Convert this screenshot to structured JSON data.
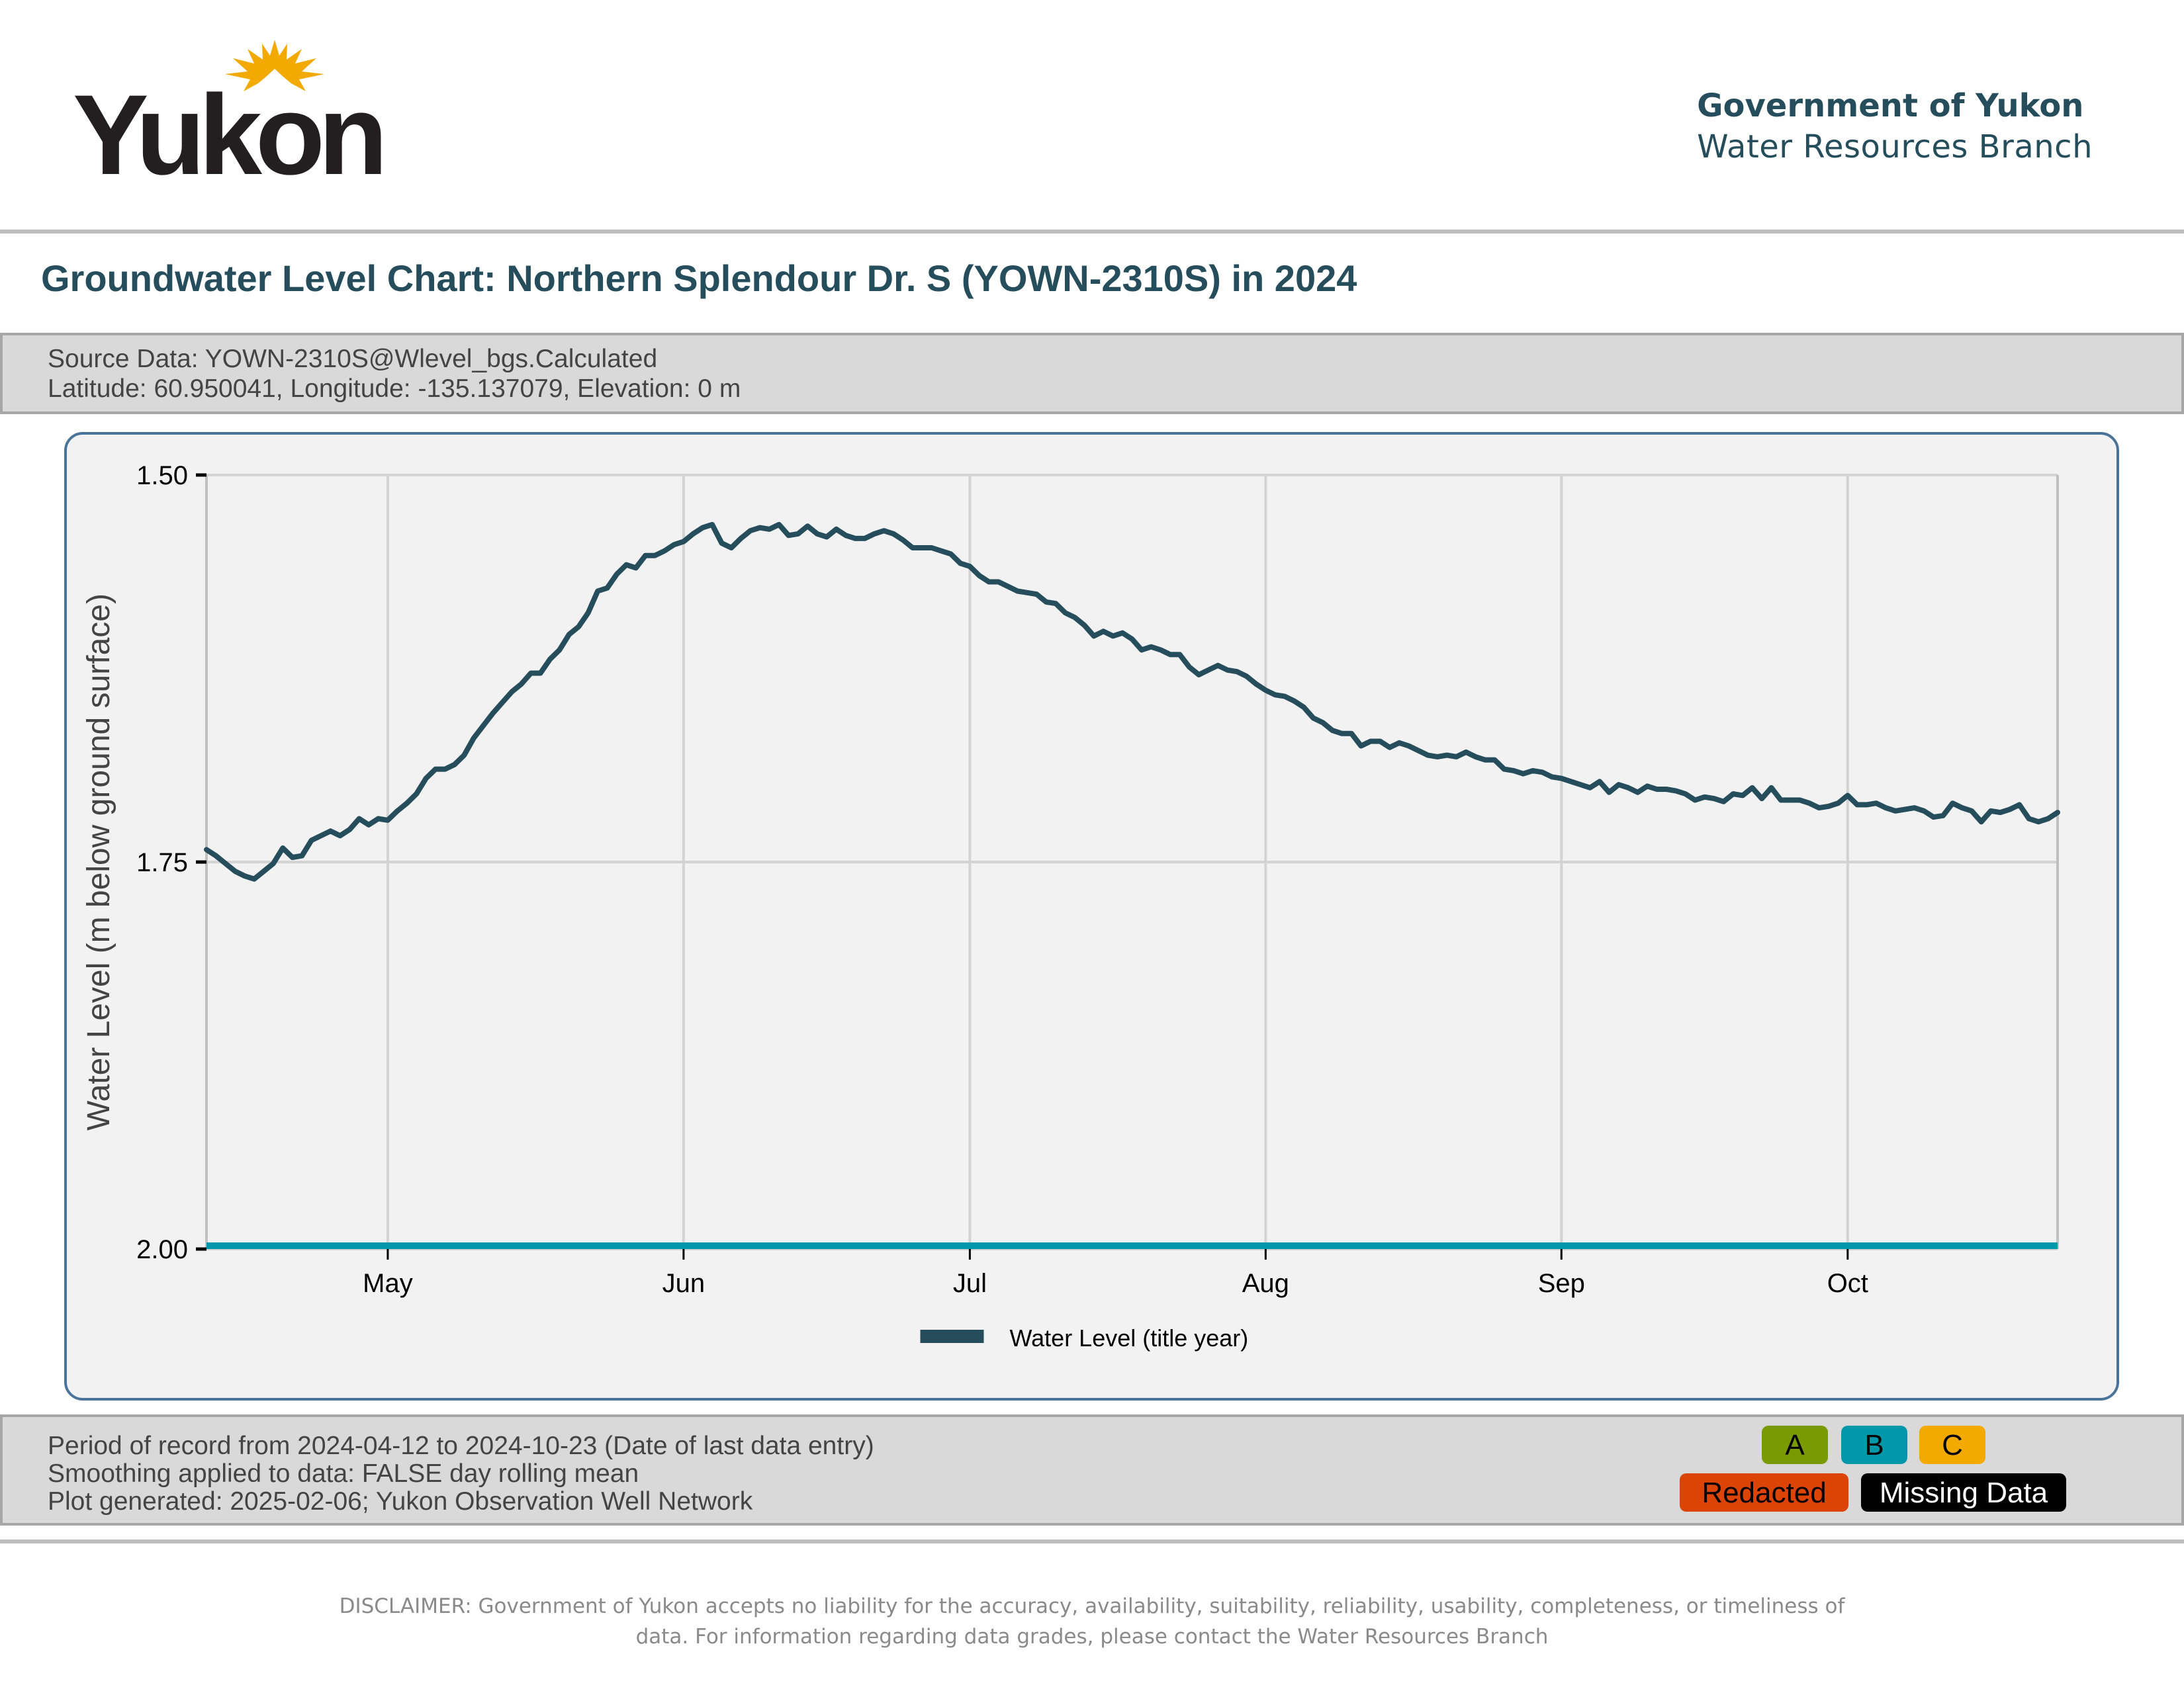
{
  "header": {
    "logo_text": "Yukon",
    "logo_icon": "sun-icon",
    "org_name": "Government of Yukon",
    "org_branch": "Water Resources Branch"
  },
  "title": "Groundwater Level Chart: Northern Splendour Dr. S (YOWN-2310S) in 2024",
  "source_info": {
    "line1": "Source Data: YOWN-2310S@Wlevel_bgs.Calculated",
    "line2": "Latitude: 60.950041, Longitude: -135.137079, Elevation: 0 m"
  },
  "footer_info": {
    "line1": "Period of record from 2024-04-12 to 2024-10-23 (Date of last data entry)",
    "line2": "Smoothing applied to data: FALSE day rolling mean",
    "line3": "Plot generated: 2025-02-06; Yukon Observation Well Network"
  },
  "grade_legend": {
    "a": {
      "label": "A",
      "color": "#7A9A01"
    },
    "b": {
      "label": "B",
      "color": "#0097A9"
    },
    "c": {
      "label": "C",
      "color": "#F2A900"
    },
    "redacted": {
      "label": "Redacted",
      "color": "#DC4405"
    },
    "missing": {
      "label": "Missing Data",
      "color": "#000000"
    }
  },
  "disclaimer": {
    "line1": "DISCLAIMER: Government of Yukon  accepts no liability for the accuracy, availability, suitability, reliability, usability, completeness, or timeliness of",
    "line2": "data. For information regarding data grades, please contact the Water Resources Branch"
  },
  "colors": {
    "brand": "#264D5C",
    "series": "#264D5C",
    "grade_bar": "#0097A9",
    "panel_border": "#4A7399"
  },
  "chart_data": {
    "type": "line",
    "title": "Groundwater Level Chart: Northern Splendour Dr. S (YOWN-2310S) in 2024",
    "xlabel": "",
    "ylabel": "Water Level (m below ground surface)",
    "y_inverted": true,
    "ylim": [
      1.5,
      2.0
    ],
    "yticks": [
      1.5,
      1.75,
      2.0
    ],
    "ytick_labels": [
      "1.50",
      "1.75",
      "2.00"
    ],
    "x_start": "2024-04-12",
    "x_end": "2024-10-23",
    "xticks": [
      {
        "label": "May",
        "date": "2024-05-01"
      },
      {
        "label": "Jun",
        "date": "2024-06-01"
      },
      {
        "label": "Jul",
        "date": "2024-07-01"
      },
      {
        "label": "Aug",
        "date": "2024-08-01"
      },
      {
        "label": "Sep",
        "date": "2024-09-01"
      },
      {
        "label": "Oct",
        "date": "2024-10-01"
      }
    ],
    "grid": true,
    "legend": {
      "position": "bottom-center",
      "entries": [
        {
          "name": "Water Level (title year)",
          "color": "#264D5C"
        }
      ]
    },
    "grade_bar": {
      "grade": "B",
      "color": "#0097A9",
      "from": "2024-04-12",
      "to": "2024-10-23"
    },
    "series": [
      {
        "name": "Water Level (title year)",
        "color": "#264D5C",
        "start_date": "2024-04-12",
        "interval_days": 1,
        "values": [
          1.742,
          1.746,
          1.751,
          1.756,
          1.759,
          1.761,
          1.756,
          1.751,
          1.741,
          1.747,
          1.746,
          1.736,
          1.733,
          1.73,
          1.733,
          1.729,
          1.722,
          1.726,
          1.722,
          1.723,
          1.717,
          1.712,
          1.706,
          1.696,
          1.69,
          1.69,
          1.687,
          1.681,
          1.67,
          1.662,
          1.654,
          1.647,
          1.64,
          1.635,
          1.628,
          1.628,
          1.619,
          1.613,
          1.603,
          1.598,
          1.589,
          1.575,
          1.573,
          1.564,
          1.558,
          1.56,
          1.552,
          1.552,
          1.549,
          1.545,
          1.543,
          1.538,
          1.534,
          1.532,
          1.544,
          1.547,
          1.541,
          1.536,
          1.534,
          1.535,
          1.532,
          1.539,
          1.538,
          1.533,
          1.538,
          1.54,
          1.535,
          1.539,
          1.541,
          1.541,
          1.538,
          1.536,
          1.538,
          1.542,
          1.547,
          1.547,
          1.547,
          1.549,
          1.551,
          1.557,
          1.559,
          1.565,
          1.569,
          1.569,
          1.572,
          1.575,
          1.576,
          1.577,
          1.582,
          1.583,
          1.589,
          1.592,
          1.597,
          1.604,
          1.601,
          1.604,
          1.602,
          1.606,
          1.613,
          1.611,
          1.613,
          1.616,
          1.616,
          1.624,
          1.629,
          1.626,
          1.623,
          1.626,
          1.627,
          1.63,
          1.635,
          1.639,
          1.642,
          1.643,
          1.646,
          1.65,
          1.657,
          1.66,
          1.665,
          1.667,
          1.667,
          1.675,
          1.672,
          1.672,
          1.676,
          1.673,
          1.675,
          1.678,
          1.681,
          1.682,
          1.681,
          1.682,
          1.679,
          1.682,
          1.684,
          1.684,
          1.69,
          1.691,
          1.693,
          1.691,
          1.692,
          1.695,
          1.696,
          1.698,
          1.7,
          1.702,
          1.698,
          1.705,
          1.7,
          1.702,
          1.705,
          1.701,
          1.703,
          1.703,
          1.704,
          1.706,
          1.71,
          1.708,
          1.709,
          1.711,
          1.706,
          1.707,
          1.702,
          1.709,
          1.702,
          1.71,
          1.71,
          1.71,
          1.712,
          1.715,
          1.714,
          1.712,
          1.707,
          1.713,
          1.713,
          1.712,
          1.715,
          1.717,
          1.716,
          1.715,
          1.717,
          1.721,
          1.72,
          1.712,
          1.715,
          1.717,
          1.724,
          1.717,
          1.718,
          1.716,
          1.713,
          1.722,
          1.724,
          1.722,
          1.718
        ]
      }
    ]
  }
}
